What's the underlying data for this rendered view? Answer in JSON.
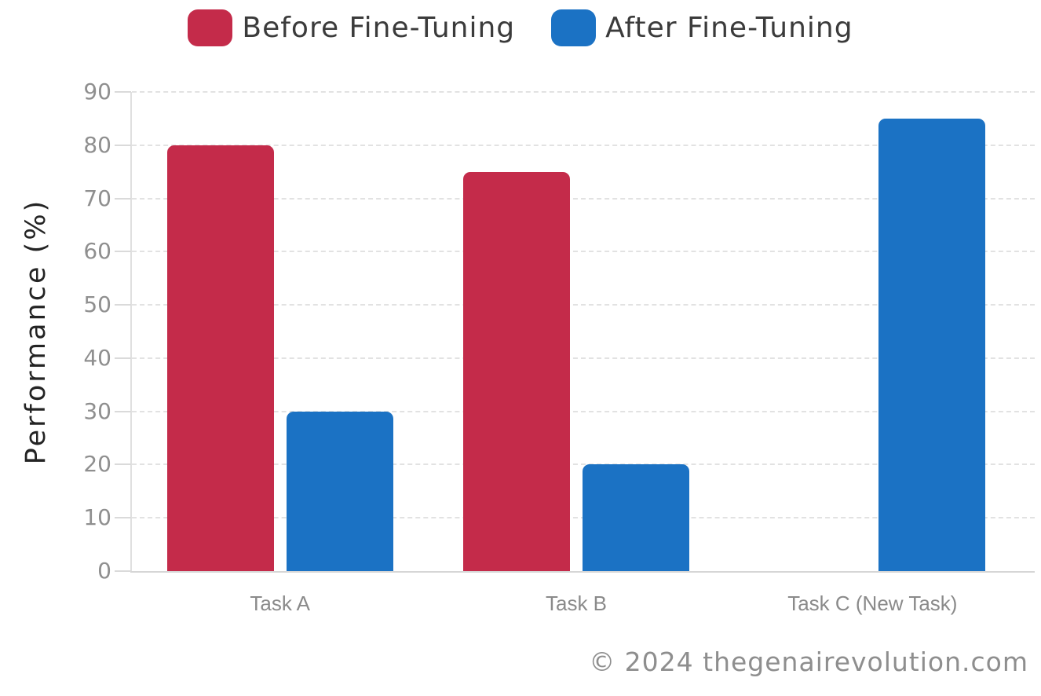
{
  "legend": {
    "items": [
      {
        "label": "Before Fine-Tuning",
        "color": "#c42b4a"
      },
      {
        "label": "After Fine-Tuning",
        "color": "#1b72c4"
      }
    ]
  },
  "footer": {
    "text": "© 2024 thegenairevolution.com"
  },
  "chart_data": {
    "type": "bar",
    "title": "",
    "categories": [
      "Task A",
      "Task B",
      "Task C (New Task)"
    ],
    "series": [
      {
        "name": "Before Fine-Tuning",
        "color": "#c42b4a",
        "values": [
          80,
          75,
          0
        ]
      },
      {
        "name": "After Fine-Tuning",
        "color": "#1b72c4",
        "values": [
          30,
          20,
          85
        ]
      }
    ],
    "xlabel": "",
    "ylabel": "Performance (%)",
    "yticks": [
      0,
      10,
      20,
      30,
      40,
      50,
      60,
      70,
      80,
      90
    ],
    "ylim": [
      0,
      90
    ],
    "grid": "horizontal-dashed",
    "legend_position": "top",
    "bar_corner_radius": 9,
    "colors": {
      "grid": "#e2e2e2",
      "axis": "#d6d6d6",
      "tick_text": "#8f8f8f",
      "legend_text": "#3b3b3b"
    }
  }
}
